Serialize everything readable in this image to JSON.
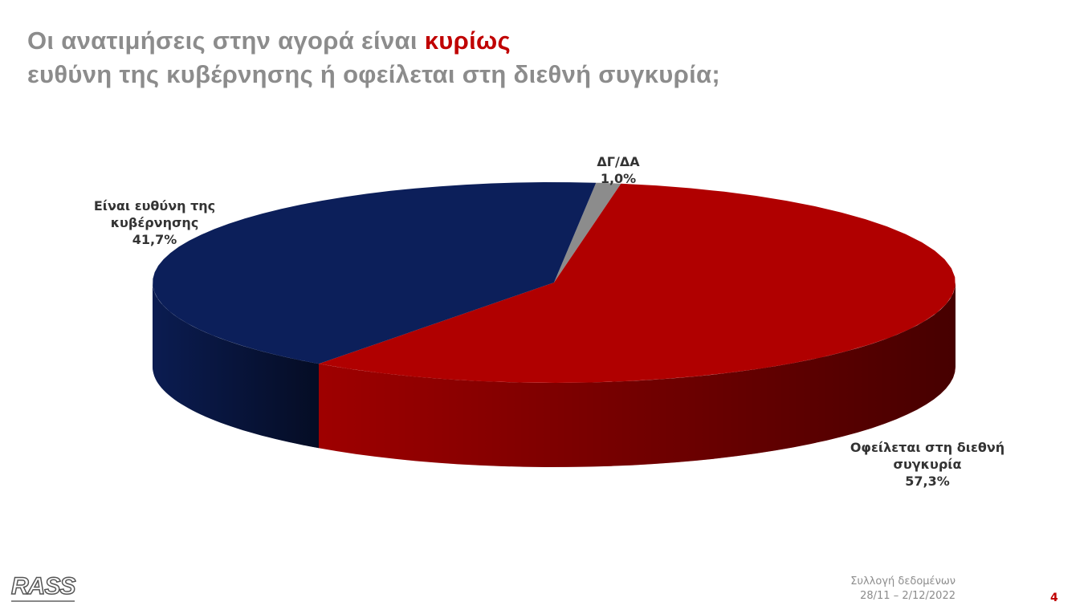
{
  "chart_data": {
    "type": "pie3d",
    "title": {
      "part1": "Οι ανατιμήσεις στην αγορά είναι",
      "highlight": "κυρίως",
      "part2": "ευθύνη της κυβέρνησης ή οφείλεται στη διεθνή συγκυρία;"
    },
    "categories": [
      "ΔΓ/ΔΑ",
      "Οφείλεται στη διεθνή συγκυρία",
      "Είναι ευθύνη της κυβέρνησης"
    ],
    "values": [
      1.0,
      57.3,
      41.7
    ],
    "value_labels": [
      "1,0%",
      "57,3%",
      "41,7%"
    ],
    "colors": [
      "#8c8c8c",
      "#b00000",
      "#0c1f5a"
    ]
  },
  "footer": {
    "caption": "Συλλογή δεδομένων",
    "dates": "28/11 – 2/12/2022",
    "page": "4",
    "logo": "RASS"
  }
}
